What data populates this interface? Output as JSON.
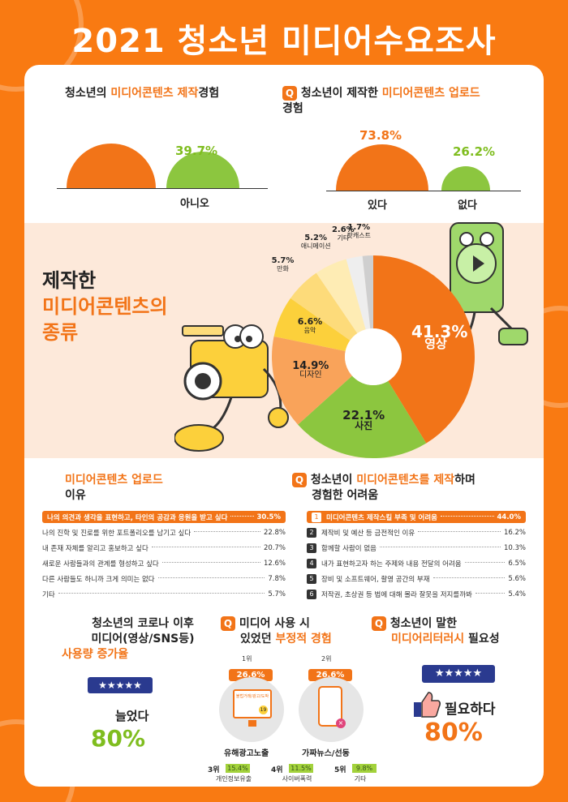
{
  "title": "2021 청소년 미디어수요조사",
  "sec1": {
    "title_pre": "청소년의 ",
    "title_hi": "미디어콘텐츠 제작",
    "title_post": "경험",
    "no_pct": "39.7%",
    "no_label": "아니오",
    "values": [
      60.3,
      39.7
    ]
  },
  "sec2": {
    "q": "Q",
    "title_pre": "청소년이 제작한 ",
    "title_hi": "미디어콘텐츠 업로드",
    "title_line2": "경험",
    "yes_pct": "73.8%",
    "yes_label": "있다",
    "no_pct": "26.2%",
    "no_label": "없다",
    "values": [
      73.8,
      26.2
    ]
  },
  "sec3": {
    "line1": "제작한",
    "line2": "미디어콘텐츠의",
    "line3": "종류"
  },
  "chart_data": {
    "type": "pie",
    "slices": [
      {
        "label": "영상",
        "value": 41.3,
        "text": "41.3%",
        "color": "#f27418"
      },
      {
        "label": "사진",
        "value": 22.1,
        "text": "22.1%",
        "color": "#8cc63f"
      },
      {
        "label": "디자인",
        "value": 14.9,
        "text": "14.9%",
        "color": "#f9a35a"
      },
      {
        "label": "음악",
        "value": 6.6,
        "text": "6.6%",
        "color": "#fcd03b"
      },
      {
        "label": "만화",
        "value": 5.7,
        "text": "5.7%",
        "color": "#fddb7a"
      },
      {
        "label": "애니메이션",
        "value": 5.2,
        "text": "5.2%",
        "color": "#feecb4"
      },
      {
        "label": "기타",
        "value": 2.6,
        "text": "2.6%",
        "color": "#eeeeee"
      },
      {
        "label": "팟캐스트",
        "value": 1.7,
        "text": "1.7%",
        "color": "#cfcfcf"
      }
    ]
  },
  "sec4": {
    "title_hi": "미디어콘텐츠 업로드",
    "title_line2": "이유",
    "rows": [
      {
        "text": "나의 의견과 생각을 표현하고, 타인의 공감과 응원을 받고 싶다",
        "value": "30.5%"
      },
      {
        "text": "나의 진학 및 진로를 위한 포트폴리오를 남기고 싶다",
        "value": "22.8%"
      },
      {
        "text": "내 존재 자체를 알리고 홍보하고 싶다",
        "value": "20.7%"
      },
      {
        "text": "새로운 사람들과의 관계를 형성하고 싶다",
        "value": "12.6%"
      },
      {
        "text": "다른 사람들도 하니까 크게 의미는 없다",
        "value": "7.8%"
      },
      {
        "text": "기타",
        "value": "5.7%"
      }
    ]
  },
  "sec5": {
    "q": "Q",
    "title_pre": "청소년이 ",
    "title_hi": "미디어콘텐츠를 제작",
    "title_post": "하며",
    "title_line2": "경험한 어려움",
    "rows": [
      {
        "n": "1",
        "text": "미디어콘텐츠 제작스킬 부족 및 어려움",
        "value": "44.0%"
      },
      {
        "n": "2",
        "text": "제작비 및 예산 등 금전적인 이유",
        "value": "16.2%"
      },
      {
        "n": "3",
        "text": "함께할 사람이 없음",
        "value": "10.3%"
      },
      {
        "n": "4",
        "text": "내가 표현하고자 하는 주제와 내용 전달의 어려움",
        "value": "6.5%"
      },
      {
        "n": "5",
        "text": "장비 및 소프트웨어, 촬영 공간의 부재",
        "value": "5.6%"
      },
      {
        "n": "6",
        "text": "저작권, 초상권 등 법에 대해 몰라 잘못을 저지를까봐",
        "value": "5.4%"
      }
    ]
  },
  "sec6": {
    "line1": "청소년의 코로나 이후",
    "line2": "미디어(영상/SNS등)",
    "line3": "사용량 증가율",
    "answer": "늘었다",
    "value": "80%",
    "stars": "★★★★★"
  },
  "sec7": {
    "q": "Q",
    "line1": "미디어 사용 시",
    "line2_pre": "있었던 ",
    "line2_hi": "부정적 경험",
    "r1": {
      "rank": "1위",
      "pct": "26.6%",
      "label": "유해광고노출",
      "screen": "불법거래/광고/도박",
      "badge": "19"
    },
    "r2": {
      "rank": "2위",
      "pct": "26.6%",
      "label": "가짜뉴스/선동"
    },
    "others": [
      {
        "rank": "3위",
        "pct": "15.4%",
        "label": "개인정보유출"
      },
      {
        "rank": "4위",
        "pct": "11.5%",
        "label": "사이버폭력"
      },
      {
        "rank": "5위",
        "pct": "9.8%",
        "label": "기타"
      }
    ]
  },
  "sec8": {
    "q": "Q",
    "line1": "청소년이 말한",
    "line2_hi": "미디어리터러시",
    "line2_post": " 필요성",
    "answer": "필요하다",
    "value": "80%",
    "stars": "★★★★★"
  }
}
